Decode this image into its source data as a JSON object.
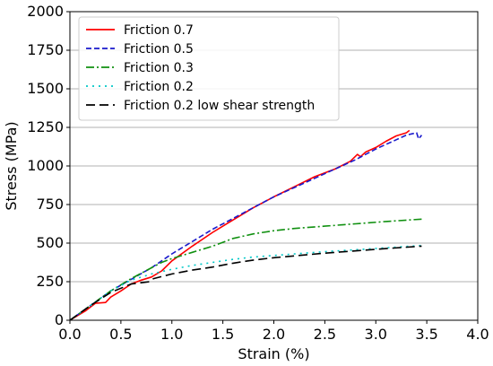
{
  "chart_data": {
    "type": "line",
    "xlabel": "Strain (%)",
    "ylabel": "Stress (MPa)",
    "xlim": [
      0,
      4
    ],
    "ylim": [
      0,
      2000
    ],
    "xticks": [
      "0.0",
      "0.5",
      "1.0",
      "1.5",
      "2.0",
      "2.5",
      "3.0",
      "3.5",
      "4.0"
    ],
    "yticks": [
      "0",
      "250",
      "500",
      "750",
      "1000",
      "1250",
      "1500",
      "1750",
      "2000"
    ],
    "grid": "horizontal",
    "legend_position": "top-left",
    "series": [
      {
        "name": "Friction 0.7",
        "color": "#ff0000",
        "dash": "solid",
        "points": [
          [
            0,
            0
          ],
          [
            0.15,
            60
          ],
          [
            0.25,
            110
          ],
          [
            0.35,
            115
          ],
          [
            0.4,
            150
          ],
          [
            0.5,
            190
          ],
          [
            0.6,
            235
          ],
          [
            0.7,
            260
          ],
          [
            0.8,
            280
          ],
          [
            0.9,
            320
          ],
          [
            1.0,
            385
          ],
          [
            1.2,
            480
          ],
          [
            1.4,
            570
          ],
          [
            1.6,
            650
          ],
          [
            1.8,
            730
          ],
          [
            2.0,
            800
          ],
          [
            2.2,
            865
          ],
          [
            2.4,
            930
          ],
          [
            2.6,
            980
          ],
          [
            2.75,
            1030
          ],
          [
            2.82,
            1075
          ],
          [
            2.85,
            1060
          ],
          [
            2.9,
            1090
          ],
          [
            3.0,
            1120
          ],
          [
            3.1,
            1160
          ],
          [
            3.2,
            1195
          ],
          [
            3.3,
            1215
          ],
          [
            3.33,
            1230
          ]
        ]
      },
      {
        "name": "Friction 0.5",
        "color": "#1a1acc",
        "dash": "dashed",
        "points": [
          [
            0,
            0
          ],
          [
            0.2,
            95
          ],
          [
            0.4,
            190
          ],
          [
            0.6,
            265
          ],
          [
            0.8,
            340
          ],
          [
            1.0,
            430
          ],
          [
            1.2,
            510
          ],
          [
            1.4,
            590
          ],
          [
            1.6,
            660
          ],
          [
            1.8,
            730
          ],
          [
            2.0,
            800
          ],
          [
            2.2,
            860
          ],
          [
            2.4,
            920
          ],
          [
            2.6,
            980
          ],
          [
            2.8,
            1040
          ],
          [
            3.0,
            1110
          ],
          [
            3.2,
            1170
          ],
          [
            3.3,
            1200
          ],
          [
            3.4,
            1215
          ],
          [
            3.42,
            1175
          ],
          [
            3.45,
            1200
          ]
        ]
      },
      {
        "name": "Friction 0.3",
        "color": "#109010",
        "dash": "dashdot",
        "points": [
          [
            0,
            0
          ],
          [
            0.2,
            95
          ],
          [
            0.4,
            190
          ],
          [
            0.6,
            270
          ],
          [
            0.8,
            340
          ],
          [
            0.9,
            375
          ],
          [
            1.0,
            400
          ],
          [
            1.1,
            420
          ],
          [
            1.2,
            440
          ],
          [
            1.4,
            480
          ],
          [
            1.6,
            530
          ],
          [
            1.8,
            560
          ],
          [
            2.0,
            580
          ],
          [
            2.2,
            595
          ],
          [
            2.5,
            610
          ],
          [
            2.8,
            625
          ],
          [
            3.1,
            640
          ],
          [
            3.45,
            655
          ]
        ]
      },
      {
        "name": "Friction 0.2",
        "color": "#00c8c8",
        "dash": "dotted",
        "points": [
          [
            0,
            0
          ],
          [
            0.2,
            95
          ],
          [
            0.4,
            190
          ],
          [
            0.6,
            260
          ],
          [
            0.8,
            300
          ],
          [
            1.0,
            330
          ],
          [
            1.2,
            355
          ],
          [
            1.4,
            375
          ],
          [
            1.6,
            395
          ],
          [
            1.8,
            410
          ],
          [
            2.0,
            420
          ],
          [
            2.5,
            445
          ],
          [
            3.0,
            465
          ],
          [
            3.45,
            485
          ]
        ]
      },
      {
        "name": "Friction 0.2 low shear strength",
        "color": "#000000",
        "dash": "longdash",
        "points": [
          [
            0,
            0
          ],
          [
            0.2,
            95
          ],
          [
            0.4,
            180
          ],
          [
            0.6,
            235
          ],
          [
            0.78,
            250
          ],
          [
            0.82,
            270
          ],
          [
            1.0,
            300
          ],
          [
            1.2,
            325
          ],
          [
            1.4,
            345
          ],
          [
            1.6,
            370
          ],
          [
            1.8,
            390
          ],
          [
            2.0,
            405
          ],
          [
            2.5,
            435
          ],
          [
            3.0,
            460
          ],
          [
            3.45,
            480
          ]
        ]
      }
    ]
  }
}
